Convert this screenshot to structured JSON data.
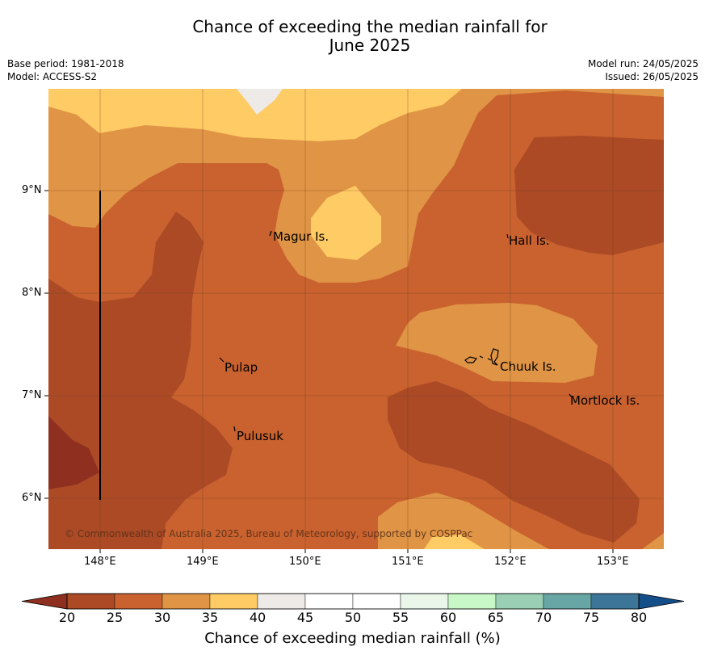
{
  "header": {
    "title_line1": "Chance of exceeding the median rainfall for",
    "title_line2": "June 2025",
    "base_period": "Base period: 1981-2018",
    "model": "Model: ACCESS-S2",
    "model_run": "Model run: 24/05/2025",
    "issued": "Issued: 26/05/2025"
  },
  "map": {
    "longitude_labels": [
      "148°E",
      "149°E",
      "150°E",
      "151°E",
      "152°E",
      "153°E"
    ],
    "latitude_labels": [
      "9°N",
      "8°N",
      "7°N",
      "6°N"
    ],
    "places": [
      "Magur Is.",
      "Hall Is.",
      "Pulap",
      "Chuuk Is.",
      "Mortlock Is.",
      "Pulusuk"
    ],
    "copyright": "© Commonwealth of Australia 2025, Bureau of Meteorology, supported by COSPPac"
  },
  "colorbar": {
    "title": "Chance of exceeding median rainfall (%)",
    "ticks": [
      "20",
      "25",
      "30",
      "35",
      "40",
      "45",
      "50",
      "55",
      "60",
      "65",
      "70",
      "75",
      "80"
    ],
    "colors": [
      "#8e2f1f",
      "#ac4a26",
      "#c9622f",
      "#e09445",
      "#fecb64",
      "#eeeae7",
      "#ffffff",
      "#ffffff",
      "#eaf6ea",
      "#c9f8c8",
      "#9acfb5",
      "#68a6a6",
      "#3d7598",
      "#144f8a"
    ]
  }
}
